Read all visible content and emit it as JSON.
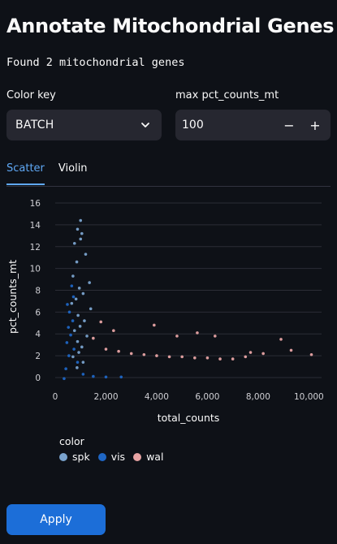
{
  "header": {
    "title": "Annotate Mitochondrial Genes"
  },
  "status_text": "Found 2 mitochondrial genes",
  "controls": {
    "color_key_label": "Color key",
    "color_key_value": "BATCH",
    "max_label": "max pct_counts_mt",
    "max_value": "100",
    "minus": "−",
    "plus": "+"
  },
  "tabs": [
    {
      "label": "Scatter",
      "active": true
    },
    {
      "label": "Violin",
      "active": false
    }
  ],
  "apply_label": "Apply",
  "colors": {
    "spk": "#7aa3ce",
    "vis": "#1f66c4",
    "wal": "#e8a4a4",
    "accent": "#5fa8f5",
    "button": "#1c6ed8"
  },
  "chart_data": {
    "type": "scatter",
    "xlabel": "total_counts",
    "ylabel": "pct_counts_mt",
    "xlim": [
      0,
      10500
    ],
    "ylim": [
      -0.6,
      16.6
    ],
    "xticks": [
      0,
      2000,
      4000,
      6000,
      8000,
      10000
    ],
    "xtick_labels": [
      "0",
      "2,000",
      "4,000",
      "6,000",
      "8,000",
      "10,000"
    ],
    "yticks": [
      0,
      2,
      4,
      6,
      8,
      10,
      12,
      14,
      16
    ],
    "ytick_labels": [
      "0",
      "2",
      "4",
      "6",
      "8",
      "10",
      "12",
      "14",
      "16"
    ],
    "grid": true,
    "legend_title": "color",
    "legend_position": "bottom-left",
    "series": [
      {
        "name": "spk",
        "color": "#7aa3ce",
        "points": [
          [
            1000,
            14.4
          ],
          [
            880,
            13.6
          ],
          [
            1050,
            13.2
          ],
          [
            760,
            12.3
          ],
          [
            1000,
            12.7
          ],
          [
            1200,
            11.3
          ],
          [
            850,
            10.6
          ],
          [
            700,
            9.3
          ],
          [
            1350,
            8.7
          ],
          [
            950,
            8.2
          ],
          [
            1100,
            7.7
          ],
          [
            820,
            7.2
          ],
          [
            650,
            6.8
          ],
          [
            1400,
            6.3
          ],
          [
            900,
            5.7
          ],
          [
            1150,
            5.2
          ],
          [
            980,
            4.7
          ],
          [
            760,
            4.3
          ],
          [
            1250,
            3.8
          ],
          [
            880,
            3.3
          ],
          [
            1050,
            2.8
          ],
          [
            930,
            2.3
          ],
          [
            700,
            1.9
          ],
          [
            1100,
            1.4
          ],
          [
            860,
            0.9
          ]
        ]
      },
      {
        "name": "vis",
        "color": "#1f66c4",
        "points": [
          [
            650,
            8.4
          ],
          [
            720,
            7.4
          ],
          [
            480,
            6.7
          ],
          [
            560,
            6.0
          ],
          [
            690,
            5.2
          ],
          [
            520,
            4.6
          ],
          [
            610,
            3.9
          ],
          [
            460,
            3.2
          ],
          [
            740,
            2.6
          ],
          [
            540,
            2.0
          ],
          [
            880,
            1.4
          ],
          [
            420,
            0.8
          ],
          [
            1100,
            0.3
          ],
          [
            1500,
            0.1
          ],
          [
            2000,
            0.05
          ],
          [
            2600,
            0.05
          ],
          [
            350,
            -0.1
          ]
        ]
      },
      {
        "name": "wal",
        "color": "#e8a4a4",
        "points": [
          [
            1500,
            3.6
          ],
          [
            2000,
            2.6
          ],
          [
            2500,
            2.4
          ],
          [
            3000,
            2.2
          ],
          [
            3500,
            2.1
          ],
          [
            4000,
            2.0
          ],
          [
            4500,
            1.9
          ],
          [
            5000,
            1.9
          ],
          [
            5500,
            1.8
          ],
          [
            6000,
            1.8
          ],
          [
            6500,
            1.7
          ],
          [
            7000,
            1.7
          ],
          [
            7500,
            1.9
          ],
          [
            8200,
            2.2
          ],
          [
            8900,
            3.5
          ],
          [
            9300,
            2.5
          ],
          [
            10100,
            2.1
          ],
          [
            4800,
            3.8
          ],
          [
            3900,
            4.8
          ],
          [
            5600,
            4.1
          ],
          [
            6300,
            3.8
          ],
          [
            7700,
            2.3
          ],
          [
            2300,
            4.3
          ],
          [
            1800,
            5.1
          ]
        ]
      }
    ]
  }
}
